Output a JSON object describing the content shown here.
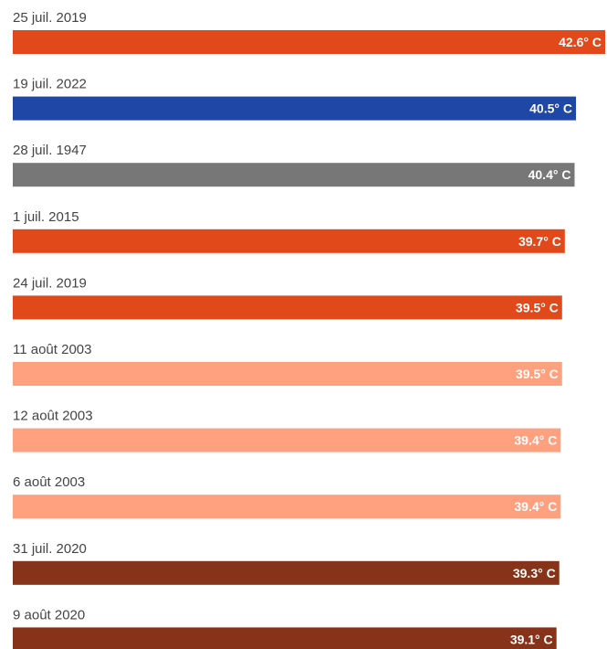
{
  "chart_data": {
    "type": "bar",
    "orientation": "horizontal",
    "categories": [
      "25 juil. 2019",
      "19 juil. 2022",
      "28 juil. 1947",
      "1 juil. 2015",
      "24 juil. 2019",
      "11 août 2003",
      "12 août 2003",
      "6 août 2003",
      "31 juil. 2020",
      "9 août 2020"
    ],
    "values": [
      42.6,
      40.5,
      40.4,
      39.7,
      39.5,
      39.5,
      39.4,
      39.4,
      39.3,
      39.1
    ],
    "value_labels": [
      "42.6° C",
      "40.5° C",
      "40.4° C",
      "39.7° C",
      "39.5° C",
      "39.5° C",
      "39.4° C",
      "39.4° C",
      "39.3° C",
      "39.1° C"
    ],
    "colors": [
      "#e2491a",
      "#1e47a6",
      "#777777",
      "#e2491a",
      "#e2491a",
      "#ffa07f",
      "#ffa07f",
      "#ffa07f",
      "#86331a",
      "#86331a"
    ]
  }
}
